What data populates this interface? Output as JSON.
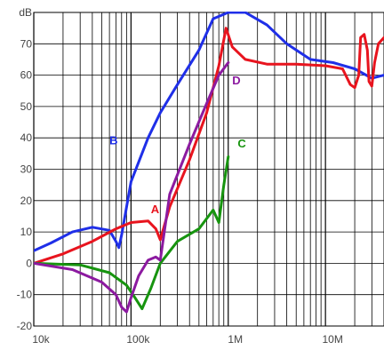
{
  "chart_data": {
    "type": "line",
    "title": "",
    "xlabel": "",
    "ylabel": "dB",
    "x_scale": "log",
    "xlim": [
      10000,
      40000000
    ],
    "ylim": [
      -20,
      80
    ],
    "grid": true,
    "legend": "none",
    "x_ticks": [
      {
        "value": 10000,
        "label": "10k"
      },
      {
        "value": 100000,
        "label": "100k"
      },
      {
        "value": 1000000,
        "label": "1M"
      },
      {
        "value": 10000000,
        "label": "10M"
      }
    ],
    "y_ticks": [
      {
        "value": 80,
        "label": "dB"
      },
      {
        "value": 70,
        "label": "70"
      },
      {
        "value": 60,
        "label": "60"
      },
      {
        "value": 50,
        "label": "50"
      },
      {
        "value": 40,
        "label": "40"
      },
      {
        "value": 30,
        "label": "30"
      },
      {
        "value": 20,
        "label": "20"
      },
      {
        "value": 10,
        "label": "10"
      },
      {
        "value": 0,
        "label": "0"
      },
      {
        "value": -10,
        "label": "-10"
      },
      {
        "value": -20,
        "label": "-20"
      }
    ],
    "series": [
      {
        "name": "B",
        "color": "#1f2fe8",
        "label_at": [
          60000,
          38
        ],
        "points": [
          [
            10000,
            4
          ],
          [
            15000,
            6.5
          ],
          [
            25000,
            10
          ],
          [
            40000,
            11.5
          ],
          [
            60000,
            10.5
          ],
          [
            70000,
            7
          ],
          [
            75000,
            5
          ],
          [
            80000,
            9
          ],
          [
            100000,
            26
          ],
          [
            150000,
            40
          ],
          [
            200000,
            48
          ],
          [
            300000,
            57
          ],
          [
            500000,
            68
          ],
          [
            700000,
            78
          ],
          [
            1000000,
            80
          ],
          [
            1500000,
            80
          ],
          [
            2500000,
            76
          ],
          [
            4000000,
            70
          ],
          [
            7000000,
            65
          ],
          [
            12000000,
            64
          ],
          [
            20000000,
            62
          ],
          [
            30000000,
            59
          ],
          [
            40000000,
            60
          ]
        ]
      },
      {
        "name": "A",
        "color": "#e8141e",
        "label_at": [
          160000,
          16
        ],
        "points": [
          [
            10000,
            0
          ],
          [
            20000,
            3
          ],
          [
            40000,
            7
          ],
          [
            70000,
            11
          ],
          [
            100000,
            13
          ],
          [
            150000,
            13.5
          ],
          [
            180000,
            11
          ],
          [
            200000,
            7.5
          ],
          [
            250000,
            18
          ],
          [
            400000,
            33
          ],
          [
            600000,
            48
          ],
          [
            800000,
            63
          ],
          [
            950000,
            75
          ],
          [
            1100000,
            69
          ],
          [
            1500000,
            65
          ],
          [
            2500000,
            63.5
          ],
          [
            5000000,
            63.5
          ],
          [
            10000000,
            63
          ],
          [
            15000000,
            62
          ],
          [
            18000000,
            57
          ],
          [
            20000000,
            56
          ],
          [
            22000000,
            60
          ],
          [
            23000000,
            72
          ],
          [
            25000000,
            73
          ],
          [
            27000000,
            68
          ],
          [
            28000000,
            58
          ],
          [
            30000000,
            56.5
          ],
          [
            32000000,
            64
          ],
          [
            35000000,
            70
          ],
          [
            40000000,
            72
          ]
        ]
      },
      {
        "name": "C",
        "color": "#17940f",
        "label_at": [
          1250000,
          37
        ],
        "points": [
          [
            10000,
            0
          ],
          [
            30000,
            -0.5
          ],
          [
            60000,
            -3
          ],
          [
            90000,
            -7
          ],
          [
            110000,
            -11
          ],
          [
            130000,
            -14.5
          ],
          [
            160000,
            -8
          ],
          [
            200000,
            0
          ],
          [
            300000,
            7
          ],
          [
            500000,
            11
          ],
          [
            700000,
            17
          ],
          [
            800000,
            13
          ],
          [
            900000,
            25
          ],
          [
            1000000,
            34
          ]
        ]
      },
      {
        "name": "D",
        "color": "#8c1aa0",
        "label_at": [
          1100000,
          57
        ],
        "points": [
          [
            10000,
            0
          ],
          [
            25000,
            -2
          ],
          [
            50000,
            -6
          ],
          [
            70000,
            -10
          ],
          [
            80000,
            -14
          ],
          [
            90000,
            -15.5
          ],
          [
            100000,
            -11
          ],
          [
            120000,
            -4
          ],
          [
            150000,
            1
          ],
          [
            180000,
            2
          ],
          [
            200000,
            1
          ],
          [
            250000,
            22
          ],
          [
            400000,
            38
          ],
          [
            600000,
            51
          ],
          [
            800000,
            60
          ],
          [
            1000000,
            64
          ]
        ]
      }
    ]
  }
}
